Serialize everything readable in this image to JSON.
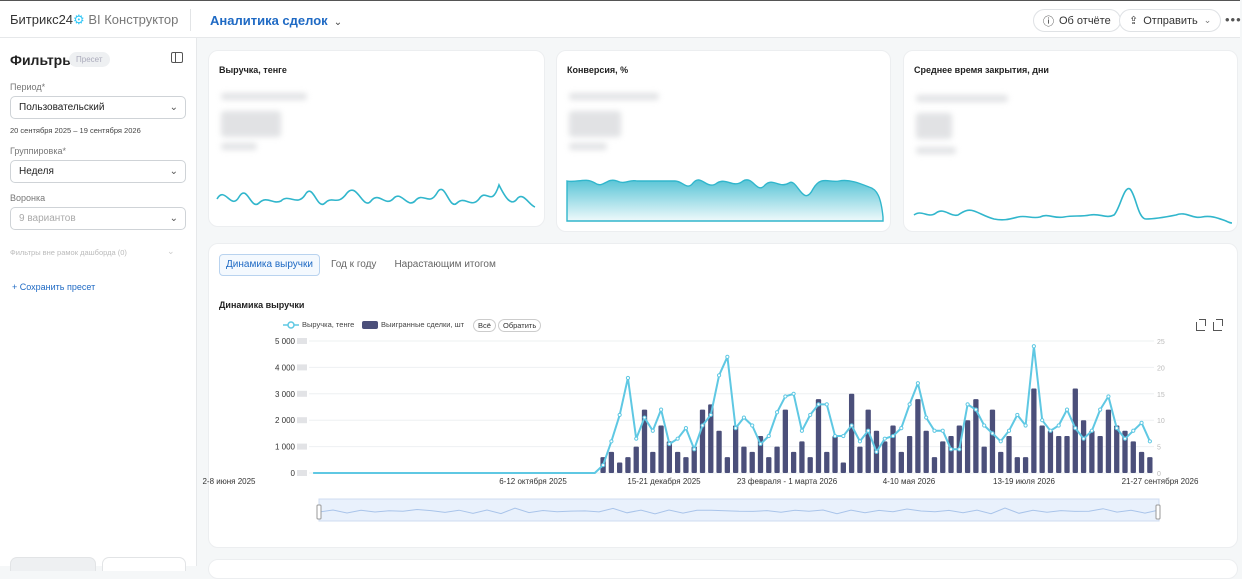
{
  "header": {
    "brand_name": "Битрикс24",
    "brand_suffix": "BI Конструктор",
    "report_title": "Аналитика сделок",
    "about_label": "Об отчёте",
    "send_label": "Отправить",
    "more_label": "•••"
  },
  "filters": {
    "title": "Фильтры",
    "preset_badge": "Пресет",
    "period_label": "Период*",
    "period_value": "Пользовательский",
    "date_range": "20 сентября 2025 – 19 сентября 2026",
    "grouping_label": "Группировка*",
    "grouping_value": "Неделя",
    "funnel_label": "Воронка",
    "funnel_placeholder": "9 вариантов",
    "outside_filters": "Фильтры вне рамок дашборда (0)",
    "save_preset": "+ Сохранить пресет"
  },
  "kpis": [
    {
      "title": "Выручка, тенге",
      "color": "#31b6cc"
    },
    {
      "title": "Конверсия, %",
      "color": "#31b6cc"
    },
    {
      "title": "Среднее время закрытия, дни",
      "color": "#31b6cc"
    }
  ],
  "tabs": [
    {
      "label": "Динамика выручки",
      "active": true
    },
    {
      "label": "Год к году",
      "active": false
    },
    {
      "label": "Нарастающим итогом",
      "active": false
    }
  ],
  "chart": {
    "title": "Динамика выручки",
    "legend_line": "Выручка, тенге",
    "legend_bar": "Выигранные сделки, шт",
    "btn_all": "Всё",
    "btn_invert": "Обратить",
    "colors": {
      "line": "#5fc8e3",
      "bar": "#4b4f7a",
      "accent": "#1f6ac4"
    }
  },
  "chart_data": {
    "type": "bar",
    "title": "Динамика выручки",
    "ylim": [
      0,
      5000000
    ],
    "y2lim": [
      0,
      25
    ],
    "y_ticks": [
      "5 000",
      "4 000",
      "3 000",
      "2 000",
      "1 000",
      "0"
    ],
    "y2_ticks": [
      "25",
      "20",
      "15",
      "10",
      "5",
      "0"
    ],
    "x_ticks": [
      "2-8 июня 2025",
      "6-12 октября 2025",
      "15-21 декабря 2025",
      "23 февраля - 1 марта 2026",
      "4-10 мая 2026",
      "13-19 июля 2026",
      "21-27 сентября 2026"
    ],
    "series": [
      {
        "name": "Выигранные сделки, шт",
        "values": [
          0,
          0,
          0,
          0,
          0,
          0,
          0,
          0,
          0,
          0,
          0,
          0,
          0,
          0,
          0,
          0,
          0,
          0,
          0,
          0,
          0,
          0,
          0,
          0,
          0,
          0,
          0,
          0,
          0,
          0,
          0,
          0,
          0,
          0,
          0,
          3,
          4,
          2,
          3,
          5,
          12,
          4,
          9,
          6,
          4,
          3,
          5,
          12,
          13,
          8,
          3,
          9,
          5,
          4,
          7,
          3,
          5,
          12,
          4,
          6,
          3,
          14,
          4,
          7,
          2,
          15,
          5,
          12,
          8,
          6,
          9,
          4,
          7,
          14,
          8,
          3,
          6,
          7,
          9,
          10,
          14,
          5,
          12,
          4,
          7,
          3,
          3,
          16,
          9,
          8,
          7,
          7,
          16,
          10,
          8,
          7,
          12,
          9,
          8,
          6,
          4,
          3
        ]
      },
      {
        "name": "Выручка, тенге",
        "values": [
          0,
          0,
          0,
          0,
          0,
          0,
          0,
          0,
          0,
          0,
          0,
          0,
          0,
          0,
          0,
          0,
          0,
          0,
          0,
          0,
          0,
          0,
          0,
          0,
          0,
          0,
          0,
          0,
          0,
          0,
          0,
          0,
          0,
          0,
          0,
          300000,
          1200000,
          2200000,
          3600000,
          1300000,
          2100000,
          1600000,
          2400000,
          1100000,
          1300000,
          1700000,
          900000,
          1800000,
          2200000,
          3700000,
          4400000,
          1700000,
          2100000,
          1800000,
          1100000,
          1400000,
          2300000,
          2900000,
          3000000,
          1600000,
          2200000,
          2600000,
          2600000,
          1400000,
          1400000,
          1800000,
          1200000,
          1600000,
          800000,
          1300000,
          1400000,
          1700000,
          2600000,
          3400000,
          2100000,
          1600000,
          1600000,
          900000,
          900000,
          2600000,
          2400000,
          1800000,
          1500000,
          1200000,
          1600000,
          2200000,
          1800000,
          4800000,
          2000000,
          1600000,
          1800000,
          2400000,
          1700000,
          1300000,
          1600000,
          2400000,
          2900000,
          1700000,
          1300000,
          1600000,
          1900000,
          1200000
        ]
      }
    ]
  }
}
